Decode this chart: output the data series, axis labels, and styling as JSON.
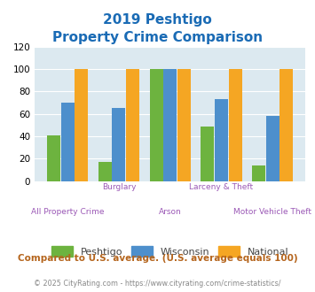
{
  "title_line1": "2019 Peshtigo",
  "title_line2": "Property Crime Comparison",
  "title_color": "#1a6bb5",
  "categories": [
    "All Property Crime",
    "Burglary",
    "Arson",
    "Larceny & Theft",
    "Motor Vehicle Theft"
  ],
  "peshtigo": [
    41,
    17,
    100,
    49,
    14
  ],
  "wisconsin": [
    70,
    65,
    100,
    73,
    58
  ],
  "national": [
    100,
    100,
    100,
    100,
    100
  ],
  "color_peshtigo": "#6db33f",
  "color_wisconsin": "#4d8fcc",
  "color_national": "#f5a623",
  "ylim": [
    0,
    120
  ],
  "yticks": [
    0,
    20,
    40,
    60,
    80,
    100,
    120
  ],
  "bg_color": "#dce9f0",
  "footer_text": "Compared to U.S. average. (U.S. average equals 100)",
  "footer_color": "#b5651d",
  "copyright_text": "© 2025 CityRating.com - https://www.cityrating.com/crime-statistics/",
  "copyright_color": "#888888",
  "xlabel_color": "#9b59b6",
  "legend_labels": [
    "Peshtigo",
    "Wisconsin",
    "National"
  ],
  "legend_text_color": "#444444"
}
